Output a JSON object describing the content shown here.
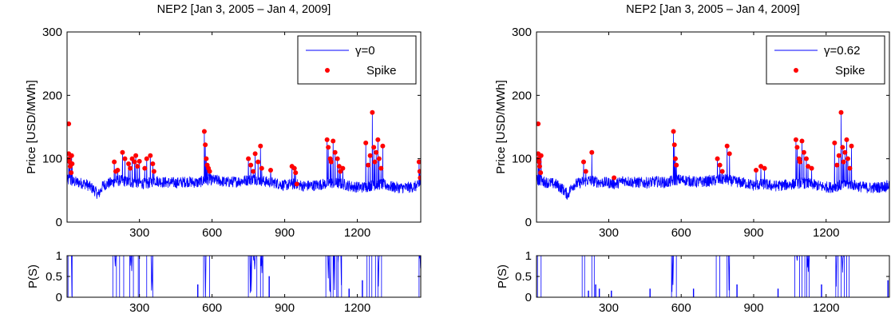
{
  "chart_data": [
    {
      "type": "line",
      "title": "NEP2 [Jan 3, 2005 – Jan 4, 2009]",
      "ylabel": "Price [USD/MWh]",
      "xlabel": "",
      "xlim": [
        1,
        1462
      ],
      "ylim": [
        0,
        300
      ],
      "xticks": [
        300,
        600,
        900,
        1200
      ],
      "yticks": [
        0,
        100,
        200,
        300
      ],
      "legend": {
        "position": "top-right",
        "entries": [
          "γ=0",
          "Spike"
        ]
      },
      "series": [
        {
          "name": "γ=0",
          "style": "line",
          "color": "#0000ff",
          "baseline": [
            [
              1,
              66
            ],
            [
              40,
              63
            ],
            [
              80,
              60
            ],
            [
              110,
              52
            ],
            [
              130,
              43
            ],
            [
              150,
              58
            ],
            [
              180,
              62
            ],
            [
              220,
              66
            ],
            [
              260,
              63
            ],
            [
              300,
              62
            ],
            [
              330,
              60
            ],
            [
              360,
              66
            ],
            [
              400,
              63
            ],
            [
              450,
              62
            ],
            [
              500,
              64
            ],
            [
              540,
              62
            ],
            [
              580,
              67
            ],
            [
              620,
              66
            ],
            [
              660,
              63
            ],
            [
              700,
              64
            ],
            [
              740,
              66
            ],
            [
              780,
              68
            ],
            [
              820,
              64
            ],
            [
              860,
              62
            ],
            [
              900,
              58
            ],
            [
              940,
              60
            ],
            [
              980,
              57
            ],
            [
              1020,
              58
            ],
            [
              1060,
              60
            ],
            [
              1100,
              62
            ],
            [
              1140,
              60
            ],
            [
              1180,
              56
            ],
            [
              1220,
              55
            ],
            [
              1260,
              58
            ],
            [
              1300,
              60
            ],
            [
              1340,
              56
            ],
            [
              1380,
              54
            ],
            [
              1420,
              55
            ],
            [
              1462,
              58
            ]
          ],
          "noise": 9
        },
        {
          "name": "Spike",
          "style": "markers",
          "color": "#ff0000",
          "points": [
            [
              8,
              155
            ],
            [
              8,
              108
            ],
            [
              10,
              100
            ],
            [
              12,
              95
            ],
            [
              14,
              88
            ],
            [
              18,
              78
            ],
            [
              20,
              105
            ],
            [
              22,
              92
            ],
            [
              196,
              95
            ],
            [
              202,
              80
            ],
            [
              210,
              82
            ],
            [
              230,
              110
            ],
            [
              240,
              100
            ],
            [
              255,
              92
            ],
            [
              262,
              85
            ],
            [
              270,
              100
            ],
            [
              280,
              95
            ],
            [
              285,
              105
            ],
            [
              292,
              88
            ],
            [
              300,
              96
            ],
            [
              322,
              85
            ],
            [
              330,
              100
            ],
            [
              345,
              105
            ],
            [
              355,
              92
            ],
            [
              360,
              80
            ],
            [
              568,
              143
            ],
            [
              572,
              122
            ],
            [
              576,
              100
            ],
            [
              580,
              90
            ],
            [
              585,
              85
            ],
            [
              590,
              80
            ],
            [
              750,
              100
            ],
            [
              760,
              90
            ],
            [
              770,
              80
            ],
            [
              778,
              108
            ],
            [
              790,
              95
            ],
            [
              800,
              120
            ],
            [
              805,
              85
            ],
            [
              842,
              82
            ],
            [
              930,
              88
            ],
            [
              940,
              85
            ],
            [
              945,
              78
            ],
            [
              950,
              60
            ],
            [
              1075,
              130
            ],
            [
              1080,
              118
            ],
            [
              1088,
              100
            ],
            [
              1092,
              95
            ],
            [
              1100,
              128
            ],
            [
              1108,
              110
            ],
            [
              1118,
              100
            ],
            [
              1125,
              88
            ],
            [
              1130,
              80
            ],
            [
              1140,
              85
            ],
            [
              1235,
              125
            ],
            [
              1245,
              90
            ],
            [
              1253,
              105
            ],
            [
              1262,
              173
            ],
            [
              1268,
              118
            ],
            [
              1272,
              95
            ],
            [
              1278,
              110
            ],
            [
              1285,
              130
            ],
            [
              1290,
              100
            ],
            [
              1298,
              85
            ],
            [
              1305,
              120
            ],
            [
              1455,
              95
            ],
            [
              1458,
              80
            ],
            [
              1460,
              70
            ]
          ]
        }
      ]
    },
    {
      "type": "line",
      "ylabel": "P(S)",
      "xlabel": "",
      "xlim": [
        1,
        1462
      ],
      "ylim": [
        0,
        1
      ],
      "xticks": [
        300,
        600,
        900,
        1200
      ],
      "yticks": [
        0,
        0.5,
        1
      ],
      "ytick_labels": [
        "0",
        "0.5",
        "1"
      ],
      "series": [
        {
          "color": "#0000ff",
          "spikes": [
            [
              5,
              22
            ],
            [
              190,
              205
            ],
            [
              218,
              235
            ],
            [
              260,
              275
            ],
            [
              295,
              300
            ],
            [
              330,
              355
            ],
            [
              565,
              590
            ],
            [
              750,
              785
            ],
            [
              800,
              810
            ],
            [
              1070,
              1090
            ],
            [
              1100,
              1115
            ],
            [
              1120,
              1135
            ],
            [
              1240,
              1250
            ],
            [
              1260,
              1275
            ],
            [
              1285,
              1300
            ],
            [
              1455,
              1462
            ]
          ],
          "blips": [
            [
              540,
              0.3
            ],
            [
              835,
              0.5
            ],
            [
              1165,
              0.2
            ],
            [
              1220,
              0.4
            ]
          ]
        }
      ]
    },
    {
      "type": "line",
      "title": "NEP2 [Jan 3, 2005 – Jan 4, 2009]",
      "ylabel": "Price [USD/MWh]",
      "xlabel": "",
      "xlim": [
        1,
        1462
      ],
      "ylim": [
        0,
        300
      ],
      "xticks": [
        300,
        600,
        900,
        1200
      ],
      "yticks": [
        0,
        100,
        200,
        300
      ],
      "legend": {
        "position": "top-right",
        "entries": [
          "γ=0.62",
          "Spike"
        ]
      },
      "series": [
        {
          "name": "γ=0.62",
          "style": "line",
          "color": "#0000ff",
          "baseline": [
            [
              1,
              66
            ],
            [
              40,
              63
            ],
            [
              80,
              60
            ],
            [
              110,
              52
            ],
            [
              130,
              43
            ],
            [
              150,
              58
            ],
            [
              180,
              62
            ],
            [
              220,
              66
            ],
            [
              260,
              63
            ],
            [
              300,
              62
            ],
            [
              330,
              60
            ],
            [
              360,
              66
            ],
            [
              400,
              63
            ],
            [
              450,
              62
            ],
            [
              500,
              64
            ],
            [
              540,
              62
            ],
            [
              580,
              67
            ],
            [
              620,
              66
            ],
            [
              660,
              63
            ],
            [
              700,
              64
            ],
            [
              740,
              66
            ],
            [
              780,
              68
            ],
            [
              820,
              64
            ],
            [
              860,
              62
            ],
            [
              900,
              58
            ],
            [
              940,
              60
            ],
            [
              980,
              57
            ],
            [
              1020,
              58
            ],
            [
              1060,
              60
            ],
            [
              1100,
              62
            ],
            [
              1140,
              60
            ],
            [
              1180,
              56
            ],
            [
              1220,
              55
            ],
            [
              1260,
              58
            ],
            [
              1300,
              60
            ],
            [
              1340,
              56
            ],
            [
              1380,
              54
            ],
            [
              1420,
              55
            ],
            [
              1462,
              58
            ]
          ],
          "noise": 9
        },
        {
          "name": "Spike",
          "style": "markers",
          "color": "#ff0000",
          "points": [
            [
              8,
              155
            ],
            [
              8,
              108
            ],
            [
              10,
              100
            ],
            [
              12,
              95
            ],
            [
              14,
              88
            ],
            [
              18,
              78
            ],
            [
              20,
              105
            ],
            [
              196,
              95
            ],
            [
              205,
              80
            ],
            [
              230,
              110
            ],
            [
              322,
              70
            ],
            [
              568,
              143
            ],
            [
              572,
              122
            ],
            [
              576,
              100
            ],
            [
              580,
              90
            ],
            [
              750,
              100
            ],
            [
              760,
              90
            ],
            [
              770,
              80
            ],
            [
              790,
              120
            ],
            [
              800,
              108
            ],
            [
              910,
              82
            ],
            [
              930,
              88
            ],
            [
              945,
              85
            ],
            [
              1075,
              130
            ],
            [
              1080,
              118
            ],
            [
              1088,
              100
            ],
            [
              1092,
              95
            ],
            [
              1100,
              128
            ],
            [
              1108,
              110
            ],
            [
              1118,
              100
            ],
            [
              1125,
              88
            ],
            [
              1140,
              85
            ],
            [
              1235,
              125
            ],
            [
              1245,
              90
            ],
            [
              1253,
              105
            ],
            [
              1262,
              173
            ],
            [
              1268,
              118
            ],
            [
              1272,
              95
            ],
            [
              1278,
              110
            ],
            [
              1285,
              130
            ],
            [
              1290,
              100
            ],
            [
              1298,
              85
            ],
            [
              1305,
              120
            ]
          ]
        }
      ]
    },
    {
      "type": "line",
      "ylabel": "P(S)",
      "xlabel": "",
      "xlim": [
        1,
        1462
      ],
      "ylim": [
        0,
        1
      ],
      "xticks": [
        300,
        600,
        900,
        1200
      ],
      "yticks": [
        0,
        0.5,
        1
      ],
      "ytick_labels": [
        "0",
        "0.5",
        "1"
      ],
      "series": [
        {
          "color": "#0000ff",
          "spikes": [
            [
              5,
              20
            ],
            [
              190,
              200
            ],
            [
              230,
              240
            ],
            [
              560,
              580
            ],
            [
              745,
              760
            ],
            [
              790,
              800
            ],
            [
              1070,
              1090
            ],
            [
              1100,
              1112
            ],
            [
              1120,
              1130
            ],
            [
              1240,
              1250
            ],
            [
              1262,
              1275
            ],
            [
              1285,
              1295
            ]
          ],
          "blips": [
            [
              215,
              0.15
            ],
            [
              245,
              0.3
            ],
            [
              260,
              0.2
            ],
            [
              310,
              0.15
            ],
            [
              470,
              0.2
            ],
            [
              650,
              0.2
            ],
            [
              830,
              0.3
            ],
            [
              1000,
              0.2
            ],
            [
              1180,
              0.3
            ],
            [
              1455,
              0.4
            ]
          ]
        }
      ]
    }
  ]
}
